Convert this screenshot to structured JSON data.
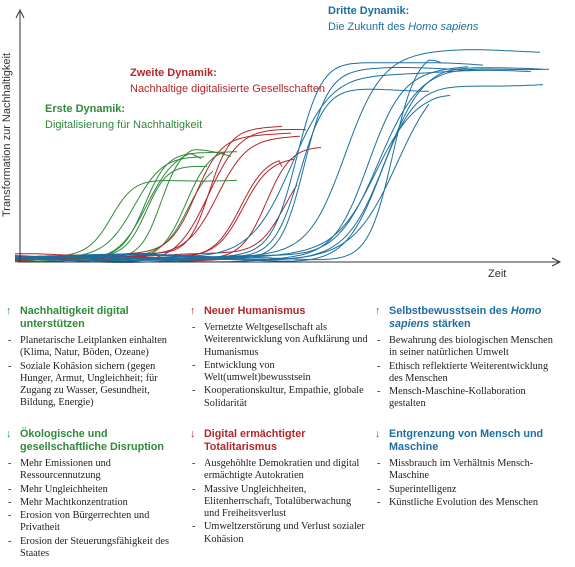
{
  "chart_area": {
    "y_axis_label": "Transformation zur Nachhaltigkeit",
    "x_axis_label": "Zeit",
    "dynamics": [
      {
        "title": "Erste Dynamik:",
        "subtitle": [
          "Digitalisierung für Nachhaltigkeit"
        ]
      },
      {
        "title": "Zweite Dynamik:",
        "subtitle": [
          "Nachhaltige digitalisierte Gesellschaften"
        ]
      },
      {
        "title": "Dritte Dynamik:",
        "subtitle": [
          "Die Zukunft des ",
          "Homo sapiens"
        ]
      }
    ]
  },
  "columns": [
    {
      "up": {
        "heading": [
          "Nachhaltigkeit digital unterstützen"
        ],
        "items": [
          "Planetarische Leitplanken einhalten (Klima, Natur, Böden, Ozeane)",
          "Soziale Kohäsion sichern (gegen Hunger, Armut, Ungleichheit; für Zugang zu Wasser, Gesundheit, Bildung, Energie)"
        ]
      },
      "down": {
        "heading": [
          "Ökologische und gesellschaftliche Disruption"
        ],
        "items": [
          "Mehr Emissionen und Ressourcennutzung",
          "Mehr Ungleichheiten",
          "Mehr Machtkonzentration",
          "Erosion von Bürgerrechten und Privatheit",
          "Erosion der Steuerungsfähigkeit des Staates"
        ]
      }
    },
    {
      "up": {
        "heading": [
          "Neuer Humanismus"
        ],
        "items": [
          "Vernetzte Weltgesellschaft als Weiterentwicklung von Aufklärung und Humanismus",
          "Entwicklung von Welt(umwelt)bewusstsein",
          "Kooperationskultur, Empathie, globale Solidarität"
        ]
      },
      "down": {
        "heading": [
          "Digital ermächtigter Totalitarismus"
        ],
        "items": [
          "Ausgehöhlte Demokratien und digital ermächtigte Autokratien",
          "Massive Ungleichheiten, Elitenherrschaft, Totalüberwachung und Freiheitsverlust",
          "Umweltzerstörung und Verlust sozialer Kohäsion"
        ]
      }
    },
    {
      "up": {
        "heading": [
          "Selbstbewusstsein des ",
          "Homo sapiens",
          " stärken"
        ],
        "items": [
          "Bewahrung des biologischen Menschen in seiner natürlichen Umwelt",
          "Ethisch reflektierte Weiterentwicklung des Menschen",
          "Mensch-Maschine-Kollaboration gestalten"
        ]
      },
      "down": {
        "heading": [
          "Entgrenzung von Mensch und Maschine"
        ],
        "items": [
          "Missbrauch im Verhältnis Mensch-Maschine",
          "Superintelligenz",
          "Künstliche Evolution des Menschen"
        ]
      }
    }
  ]
}
